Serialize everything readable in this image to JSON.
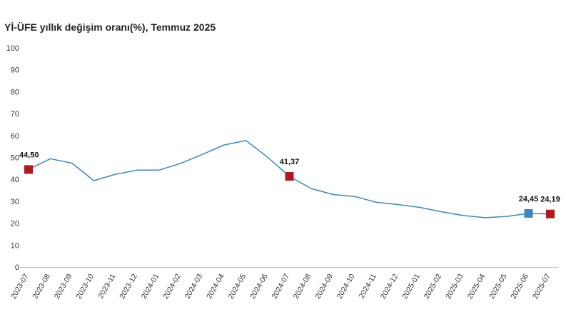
{
  "chart_data": {
    "type": "line",
    "title": "Yİ-ÜFE yıllık değişim oranı(%), Temmuz 2025",
    "xlabel": "",
    "ylabel": "",
    "ylim": [
      0,
      100
    ],
    "yticks": [
      0,
      10,
      20,
      30,
      40,
      50,
      60,
      70,
      80,
      90,
      100
    ],
    "grid": false,
    "line_color": "#3d86c6",
    "categories": [
      "2023-07",
      "2023-08",
      "2023-09",
      "2023-10",
      "2023-11",
      "2023-12",
      "2024-01",
      "2024-02",
      "2024-03",
      "2024-04",
      "2024-05",
      "2024-06",
      "2024-07",
      "2024-08",
      "2024-09",
      "2024-10",
      "2024-11",
      "2024-12",
      "2025-01",
      "2025-02",
      "2025-03",
      "2025-04",
      "2025-05",
      "2025-06",
      "2025-07"
    ],
    "series": [
      {
        "values": [
          44.5,
          49.4,
          47.4,
          39.4,
          42.3,
          44.2,
          44.2,
          47.3,
          51.4,
          55.7,
          57.7,
          50.1,
          41.37,
          35.8,
          33.1,
          32.2,
          29.5,
          28.5,
          27.2,
          25.2,
          23.5,
          22.5,
          23.1,
          24.45,
          24.19
        ]
      }
    ],
    "markers": [
      {
        "index": 0,
        "label": "44,50",
        "color": "#b2191f"
      },
      {
        "index": 12,
        "label": "41,37",
        "color": "#b2191f"
      },
      {
        "index": 23,
        "label": "24,45",
        "color": "#3d86c6"
      },
      {
        "index": 24,
        "label": "24,19",
        "color": "#b2191f"
      }
    ]
  }
}
